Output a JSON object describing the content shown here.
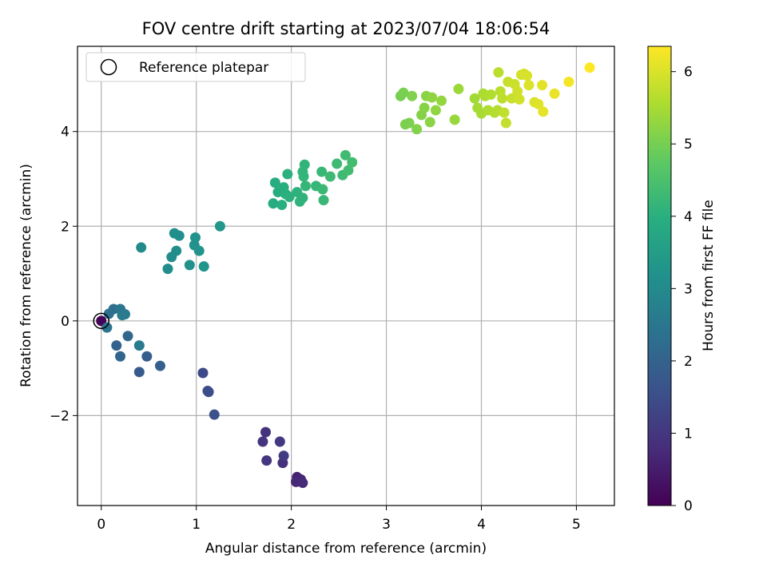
{
  "chart_data": {
    "type": "scatter",
    "title": "FOV centre drift starting at 2023/07/04 18:06:54",
    "xlabel": "Angular distance from reference (arcmin)",
    "ylabel": "Rotation from reference (arcmin)",
    "xlim": [
      -0.25,
      5.4
    ],
    "ylim": [
      -3.9,
      5.8
    ],
    "xticks": [
      0,
      1,
      2,
      3,
      4,
      5
    ],
    "xtick_labels": [
      "0",
      "1",
      "2",
      "3",
      "4",
      "5"
    ],
    "yticks": [
      -2,
      0,
      2,
      4
    ],
    "ytick_labels": [
      "−2",
      "0",
      "2",
      "4"
    ],
    "grid": true,
    "legend": {
      "position": "top-left",
      "entries": [
        "Reference platepar"
      ]
    },
    "colorbar": {
      "label": "Hours from first FF file",
      "colormap": "viridis",
      "range": [
        0,
        6.35
      ],
      "ticks": [
        0,
        1,
        2,
        3,
        4,
        5,
        6
      ],
      "tick_labels": [
        "0",
        "1",
        "2",
        "3",
        "4",
        "5",
        "6"
      ]
    },
    "reference_point": {
      "x": 0,
      "y": 0
    },
    "series": [
      {
        "x": [
          0.0,
          2.06,
          2.1,
          2.05,
          2.12,
          1.91,
          1.73,
          1.7,
          1.74,
          1.88,
          1.92,
          1.07,
          1.12,
          1.13,
          1.19,
          0.4,
          0.48,
          0.62,
          0.16,
          0.2,
          0.28,
          0.13,
          0.08,
          0.06,
          0.2,
          0.25,
          0.22,
          0.4,
          0.42,
          0.7,
          0.74,
          0.79,
          0.77,
          0.82,
          0.93,
          0.98,
          0.99,
          1.03,
          1.08,
          1.25,
          1.81,
          1.83,
          1.86,
          1.9,
          1.92,
          1.94,
          1.96,
          1.98,
          2.06,
          2.09,
          2.12,
          2.14,
          2.12,
          2.13,
          2.15,
          2.26,
          2.32,
          2.34,
          2.33,
          2.41,
          2.48,
          2.54,
          2.57,
          2.6,
          2.64,
          3.15,
          3.18,
          3.2,
          3.24,
          3.27,
          3.32,
          3.37,
          3.4,
          3.42,
          3.46,
          3.48,
          3.52,
          3.58,
          3.72,
          3.76,
          3.93,
          3.96,
          4.0,
          4.02,
          4.04,
          4.07,
          4.1,
          4.14,
          4.17,
          4.18,
          4.2,
          4.22,
          4.24,
          4.26,
          4.28,
          4.32,
          4.35,
          4.38,
          4.4,
          4.42,
          4.45,
          4.48,
          4.5,
          4.56,
          4.6,
          4.64,
          4.65,
          4.77,
          4.92,
          5.14
        ],
        "y": [
          0.0,
          -3.3,
          -3.35,
          -3.4,
          -3.42,
          -3.0,
          -2.35,
          -2.55,
          -2.95,
          -2.55,
          -2.85,
          -1.1,
          -1.48,
          -1.5,
          -1.98,
          -1.08,
          -0.75,
          -0.95,
          -0.52,
          -0.75,
          -0.32,
          0.25,
          0.15,
          -0.14,
          0.25,
          0.14,
          0.12,
          -0.52,
          1.55,
          1.1,
          1.35,
          1.48,
          1.85,
          1.8,
          1.18,
          1.6,
          1.76,
          1.48,
          1.15,
          2.0,
          2.48,
          2.92,
          2.72,
          2.45,
          2.82,
          2.68,
          3.1,
          2.62,
          2.72,
          2.52,
          2.6,
          3.3,
          3.15,
          3.05,
          2.85,
          2.85,
          3.15,
          2.55,
          2.78,
          3.05,
          3.32,
          3.08,
          3.5,
          3.18,
          3.35,
          4.75,
          4.82,
          4.15,
          4.18,
          4.75,
          4.05,
          4.35,
          4.5,
          4.75,
          4.2,
          4.72,
          4.45,
          4.65,
          4.25,
          4.9,
          4.7,
          4.5,
          4.38,
          4.8,
          4.75,
          4.45,
          4.78,
          4.4,
          4.45,
          5.25,
          4.85,
          4.7,
          4.4,
          4.18,
          5.05,
          4.7,
          5.0,
          4.85,
          4.68,
          5.2,
          5.22,
          5.18,
          4.98,
          4.62,
          4.58,
          4.98,
          4.42,
          4.8,
          5.05,
          5.35
        ],
        "hours": [
          0.05,
          0.6,
          0.65,
          0.7,
          0.75,
          0.85,
          0.9,
          0.95,
          1.0,
          1.05,
          1.1,
          1.4,
          1.45,
          1.5,
          1.55,
          1.8,
          1.85,
          1.9,
          2.0,
          2.05,
          2.1,
          2.3,
          2.35,
          2.4,
          2.45,
          2.55,
          2.6,
          2.65,
          3.0,
          3.05,
          3.08,
          3.1,
          3.12,
          3.15,
          3.18,
          3.2,
          3.22,
          3.25,
          3.28,
          3.35,
          3.9,
          3.92,
          3.94,
          3.96,
          3.98,
          4.0,
          4.02,
          4.04,
          4.06,
          4.08,
          4.1,
          4.12,
          4.14,
          4.16,
          4.18,
          4.2,
          4.22,
          4.24,
          4.26,
          4.28,
          4.3,
          4.32,
          4.34,
          4.36,
          4.38,
          5.0,
          5.02,
          5.05,
          5.07,
          5.1,
          5.12,
          5.15,
          5.17,
          5.2,
          5.22,
          5.25,
          5.27,
          5.3,
          5.35,
          5.4,
          5.45,
          5.48,
          5.5,
          5.52,
          5.55,
          5.58,
          5.6,
          5.62,
          5.65,
          5.68,
          5.7,
          5.72,
          5.75,
          5.78,
          5.8,
          5.82,
          5.85,
          5.88,
          5.9,
          5.92,
          5.95,
          5.98,
          6.0,
          6.02,
          6.05,
          6.08,
          6.1,
          6.15,
          6.25,
          6.35
        ]
      }
    ]
  }
}
